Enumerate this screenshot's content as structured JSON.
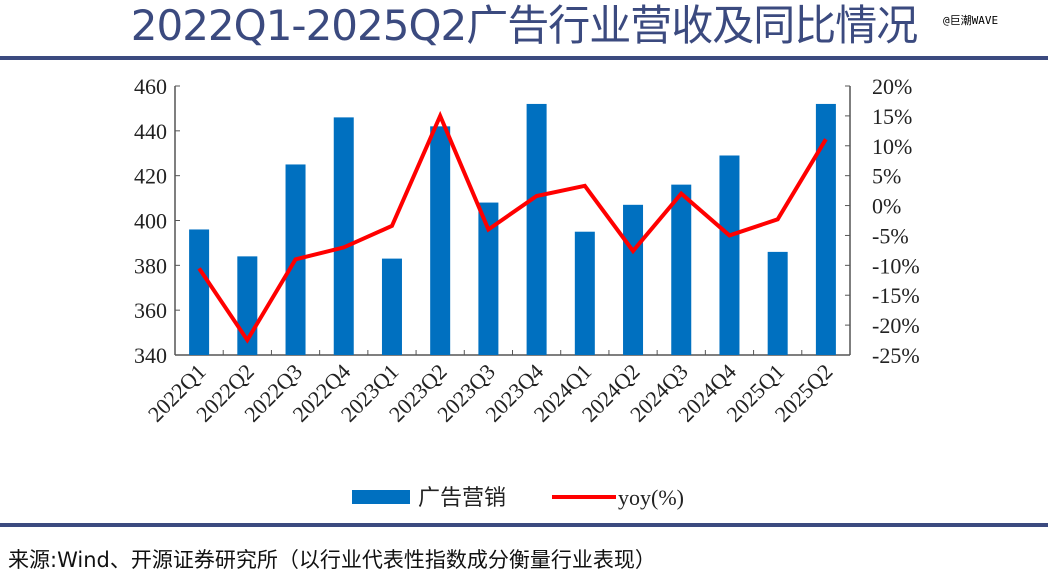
{
  "title": "2022Q1-2025Q2广告行业营收及同比情况",
  "watermark": "@巨潮WAVE",
  "source": "来源:Wind、开源证券研究所（以行业代表性指数成分衡量行业表现）",
  "chart_data": {
    "type": "bar+line",
    "categories": [
      "2022Q1",
      "2022Q2",
      "2022Q3",
      "2022Q4",
      "2023Q1",
      "2023Q2",
      "2023Q3",
      "2023Q4",
      "2024Q1",
      "2024Q2",
      "2024Q3",
      "2024Q4",
      "2025Q1",
      "2025Q2"
    ],
    "series": [
      {
        "name": "广告营销",
        "type": "bar",
        "axis": "left",
        "color": "#0070c0",
        "values": [
          396,
          384,
          425,
          446,
          383,
          442,
          408,
          452,
          395,
          407,
          416,
          429,
          386,
          452
        ]
      },
      {
        "name": "yoy(%)",
        "type": "line",
        "axis": "right",
        "color": "#ff0000",
        "values": [
          -10.5,
          -22.5,
          -9.0,
          -7.0,
          -3.4,
          15.0,
          -4.0,
          1.6,
          3.3,
          -7.6,
          2.0,
          -5.0,
          -2.3,
          11.1
        ]
      }
    ],
    "left_axis": {
      "ylim": [
        340,
        460
      ],
      "ticks": [
        "340",
        "360",
        "380",
        "400",
        "420",
        "440",
        "460"
      ]
    },
    "right_axis": {
      "ylim": [
        -25,
        20
      ],
      "ticks": [
        "-25%",
        "-20%",
        "-15%",
        "-10%",
        "-5%",
        "0%",
        "5%",
        "10%",
        "15%",
        "20%"
      ]
    },
    "legend": "bottom"
  }
}
